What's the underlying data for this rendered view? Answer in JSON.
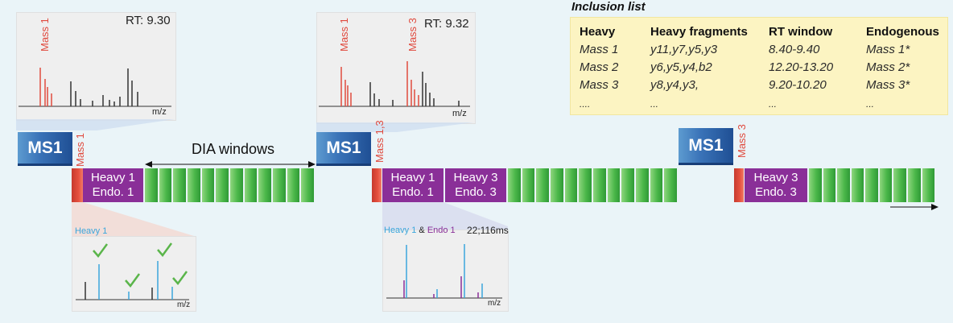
{
  "spectrum_top_1": {
    "mass_label": "Mass 1",
    "rt": "RT: 9.30",
    "axis": "m/z"
  },
  "spectrum_top_2": {
    "mass_label_a": "Mass 1",
    "mass_label_b": "Mass 3",
    "rt": "RT: 9.32",
    "axis": "m/z"
  },
  "timeline": {
    "ms1_label": "MS1",
    "dia_label": "DIA windows",
    "scan1": {
      "mass_label": "Mass 1",
      "line1": "Heavy 1",
      "line2": "Endo. 1"
    },
    "scan2": {
      "mass_label": "Mass 1,3",
      "a_line1": "Heavy 1",
      "a_line2": "Endo. 1",
      "b_line1": "Heavy 3",
      "b_line2": "Endo. 3"
    },
    "scan3": {
      "mass_label": "Mass 3",
      "line1": "Heavy 3",
      "line2": "Endo. 3"
    }
  },
  "spectrum_bottom_1": {
    "label": "Heavy 1",
    "axis": "m/z"
  },
  "spectrum_bottom_2": {
    "label_heavy": "Heavy 1",
    "label_amp": " & ",
    "label_endo": "Endo 1",
    "time": "22;116ms",
    "axis": "m/z"
  },
  "inclusion_list": {
    "title": "Inclusion list",
    "headers": [
      "Heavy",
      "Heavy fragments",
      "RT window",
      "Endogenous"
    ],
    "rows": [
      [
        "Mass 1",
        "y11,y7,y5,y3",
        "8.40-9.40",
        "Mass 1*"
      ],
      [
        "Mass 2",
        "y6,y5,y4,b2",
        "12.20-13.20",
        "Mass 2*"
      ],
      [
        "Mass 3",
        "y8,y4,y3,",
        "9.20-10.20",
        "Mass 3*"
      ],
      [
        "....",
        "...",
        "...",
        "..."
      ]
    ]
  },
  "colors": {
    "heavy": "#8a2f98",
    "mass_red": "#e04a3e",
    "dia_green": "#4cb84a",
    "ms1_blue": "#2f63a8",
    "heavy_cyan": "#3aa6dc",
    "check_green": "#5ab54a"
  }
}
